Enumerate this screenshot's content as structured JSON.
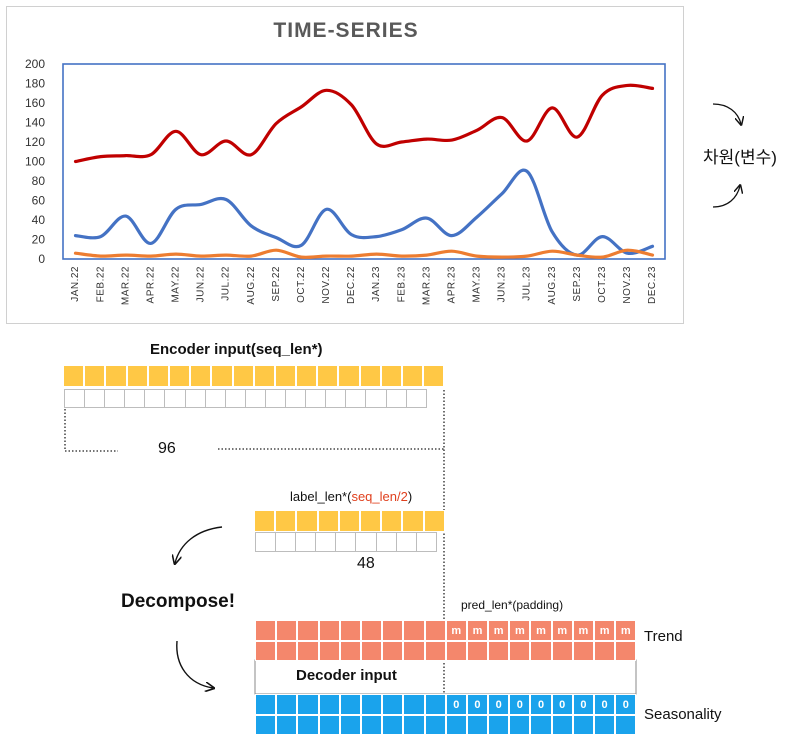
{
  "chart_data": {
    "type": "line",
    "title": "TIME-SERIES",
    "categories": [
      "JAN.22",
      "FEB.22",
      "MAR.22",
      "APR.22",
      "MAY.22",
      "JUN.22",
      "JUL.22",
      "AUG.22",
      "SEP.22",
      "OCT.22",
      "NOV.22",
      "DEC.22",
      "JAN.23",
      "FEB.23",
      "MAR.23",
      "APR.23",
      "MAY.23",
      "JUN.23",
      "JUL.23",
      "AUG.23",
      "SEP.23",
      "OCT.23",
      "NOV.23",
      "DEC.23"
    ],
    "ylim": [
      0,
      200
    ],
    "yticks": [
      0,
      20,
      40,
      60,
      80,
      100,
      120,
      140,
      160,
      180,
      200
    ],
    "series": [
      {
        "name": "red",
        "color": "#c00000",
        "values": [
          100,
          105,
          106,
          107,
          131,
          107,
          121,
          107,
          139,
          156,
          173,
          158,
          118,
          120,
          123,
          122,
          132,
          145,
          121,
          155,
          125,
          168,
          178,
          175
        ]
      },
      {
        "name": "blue",
        "color": "#4472c4",
        "values": [
          24,
          23,
          44,
          16,
          51,
          56,
          61,
          34,
          22,
          14,
          51,
          25,
          23,
          30,
          42,
          24,
          43,
          67,
          90,
          28,
          4,
          23,
          6,
          13
        ]
      },
      {
        "name": "orange",
        "color": "#ed7d31",
        "values": [
          6,
          3,
          4,
          3,
          5,
          3,
          4,
          3,
          9,
          2,
          3,
          3,
          5,
          3,
          4,
          8,
          3,
          2,
          3,
          8,
          4,
          2,
          9,
          4
        ]
      }
    ]
  },
  "side_label": "차원(변수)",
  "colors": {
    "encoder": "#ffc845",
    "trend": "#f4876c",
    "seasonality": "#1aa3ec",
    "cell_border": "#bdbdbd",
    "highlight": "#e0401e"
  },
  "encoder": {
    "title": "Encoder input(seq_len*)",
    "length": "96"
  },
  "label": {
    "title_prefix": "label_len*(",
    "title_highlight": "seq_len/2",
    "title_suffix": ")",
    "length": "48"
  },
  "decompose_label": "Decompose!",
  "pred_label": "pred_len*(padding)",
  "trend_label": "Trend",
  "decoder_label": "Decoder input",
  "seasonality_label": "Seasonality",
  "trend_pad_symbol": "m",
  "season_pad_symbol": "0"
}
